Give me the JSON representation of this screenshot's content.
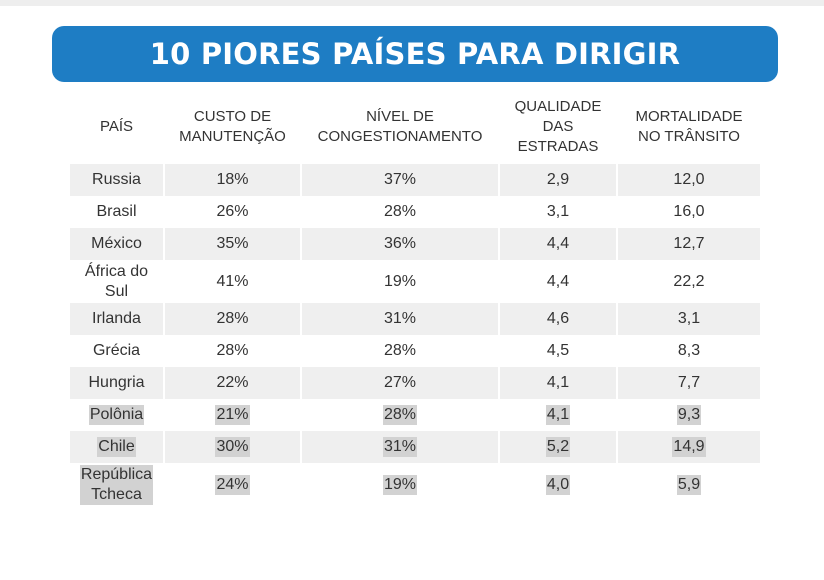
{
  "title": "10 PIORES PAÍSES PARA DIRIGIR",
  "headers": [
    "PAÍS",
    "CUSTO DE\nMANUTENÇÃO",
    "NÍVEL DE\nCONGESTIONAMENTO",
    "QUALIDADE\nDAS\nESTRADAS",
    "MORTALIDADE\nNO TRÂNSITO"
  ],
  "rows": [
    [
      "Russia",
      "18%",
      "37%",
      "2,9",
      "12,0"
    ],
    [
      "Brasil",
      "26%",
      "28%",
      "3,1",
      "16,0"
    ],
    [
      "México",
      "35%",
      "36%",
      "4,4",
      "12,7"
    ],
    [
      "África do\nSul",
      "41%",
      "19%",
      "4,4",
      "22,2"
    ],
    [
      "Irlanda",
      "28%",
      "31%",
      "4,6",
      "3,1"
    ],
    [
      "Grécia",
      "28%",
      "28%",
      "4,5",
      "8,3"
    ],
    [
      "Hungria",
      "22%",
      "27%",
      "4,1",
      "7,7"
    ],
    [
      "Polônia",
      "21%",
      "28%",
      "4,1",
      "9,3"
    ],
    [
      "Chile",
      "30%",
      "31%",
      "5,2",
      "14,9"
    ],
    [
      "República\nTcheca",
      "24%",
      "19%",
      "4,0",
      "5,9"
    ]
  ],
  "colors": {
    "banner": "#1e7dc4",
    "row_shade": "#efefef",
    "text_highlight": "#d2d2d2"
  }
}
